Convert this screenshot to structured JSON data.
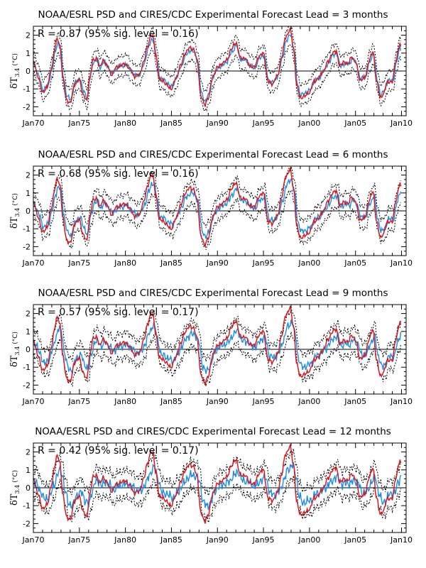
{
  "figure": {
    "ylabel_symbol": "δT",
    "ylabel_subscript": "3.4",
    "ylabel_unit": "(°C)"
  },
  "chart_data": [
    {
      "type": "line",
      "title": "NOAA/ESRL PSD and CIRES/CDC Experimental Forecast Lead = 3 months",
      "annotation": "R = 0.87 (95% sig. level = 0.16)",
      "xlabel": "",
      "ylabel": "δT3.4 (°C)",
      "xlim": [
        1970,
        2010.5
      ],
      "ylim": [
        -2.5,
        2.5
      ],
      "x_ticks": [
        "Jan70",
        "Jan75",
        "Jan80",
        "Jan85",
        "Jan90",
        "Jan95",
        "Jan00",
        "Jan05",
        "Jan10"
      ],
      "y_ticks": [
        -2,
        -1,
        0,
        1,
        2
      ],
      "forecast_lead_months": 3,
      "noise": 0.22,
      "series": [
        {
          "role": "observed",
          "color": "#d71920",
          "style": "solid"
        },
        {
          "role": "forecast",
          "color": "#1e8ce6",
          "style": "solid"
        },
        {
          "role": "spread",
          "color": "#000000",
          "style": "dotted"
        }
      ]
    },
    {
      "type": "line",
      "title": "NOAA/ESRL PSD and CIRES/CDC Experimental Forecast Lead = 6 months",
      "annotation": "R = 0.68 (95% sig. level = 0.16)",
      "xlabel": "",
      "ylabel": "δT3.4 (°C)",
      "xlim": [
        1970,
        2010.5
      ],
      "ylim": [
        -2.5,
        2.5
      ],
      "x_ticks": [
        "Jan70",
        "Jan75",
        "Jan80",
        "Jan85",
        "Jan90",
        "Jan95",
        "Jan00",
        "Jan05",
        "Jan10"
      ],
      "y_ticks": [
        -2,
        -1,
        0,
        1,
        2
      ],
      "forecast_lead_months": 6,
      "noise": 0.3,
      "series": [
        {
          "role": "observed",
          "color": "#d71920",
          "style": "solid"
        },
        {
          "role": "forecast",
          "color": "#1e8ce6",
          "style": "solid"
        },
        {
          "role": "spread",
          "color": "#000000",
          "style": "dotted"
        }
      ]
    },
    {
      "type": "line",
      "title": "NOAA/ESRL PSD and CIRES/CDC Experimental Forecast Lead = 9 months",
      "annotation": "R = 0.57 (95% sig. level = 0.17)",
      "xlabel": "",
      "ylabel": "δT3.4 (°C)",
      "xlim": [
        1970,
        2010.5
      ],
      "ylim": [
        -2.5,
        2.5
      ],
      "x_ticks": [
        "Jan70",
        "Jan75",
        "Jan80",
        "Jan85",
        "Jan90",
        "Jan95",
        "Jan00",
        "Jan05",
        "Jan10"
      ],
      "y_ticks": [
        -2,
        -1,
        0,
        1,
        2
      ],
      "forecast_lead_months": 9,
      "noise": 0.38,
      "series": [
        {
          "role": "observed",
          "color": "#d71920",
          "style": "solid"
        },
        {
          "role": "forecast",
          "color": "#1e8ce6",
          "style": "solid"
        },
        {
          "role": "spread",
          "color": "#000000",
          "style": "dotted"
        }
      ]
    },
    {
      "type": "line",
      "title": "NOAA/ESRL PSD and CIRES/CDC Experimental Forecast Lead = 12 months",
      "annotation": "R = 0.42 (95% sig. level = 0.17)",
      "xlabel": "",
      "ylabel": "δT3.4 (°C)",
      "xlim": [
        1970,
        2010.5
      ],
      "ylim": [
        -2.5,
        2.5
      ],
      "x_ticks": [
        "Jan70",
        "Jan75",
        "Jan80",
        "Jan85",
        "Jan90",
        "Jan95",
        "Jan00",
        "Jan05",
        "Jan10"
      ],
      "y_ticks": [
        -2,
        -1,
        0,
        1,
        2
      ],
      "forecast_lead_months": 12,
      "noise": 0.45,
      "series": [
        {
          "role": "observed",
          "color": "#d71920",
          "style": "solid"
        },
        {
          "role": "forecast",
          "color": "#1e8ce6",
          "style": "solid"
        },
        {
          "role": "spread",
          "color": "#000000",
          "style": "dotted"
        }
      ]
    }
  ],
  "observed_anomaly": {
    "x": [
      1970.0,
      1970.5,
      1971.0,
      1971.5,
      1972.0,
      1972.3,
      1972.6,
      1972.9,
      1973.2,
      1973.6,
      1974.0,
      1974.5,
      1975.0,
      1975.4,
      1975.8,
      1976.1,
      1976.5,
      1976.9,
      1977.2,
      1977.6,
      1978.0,
      1978.5,
      1979.0,
      1979.5,
      1980.0,
      1980.5,
      1981.0,
      1981.5,
      1982.0,
      1982.4,
      1982.8,
      1983.0,
      1983.3,
      1983.7,
      1984.0,
      1984.5,
      1985.0,
      1985.5,
      1986.0,
      1986.5,
      1987.0,
      1987.4,
      1987.8,
      1988.2,
      1988.6,
      1989.0,
      1989.5,
      1990.0,
      1990.5,
      1991.0,
      1991.5,
      1992.0,
      1992.5,
      1993.0,
      1993.5,
      1994.0,
      1994.5,
      1995.0,
      1995.5,
      1996.0,
      1996.5,
      1997.0,
      1997.4,
      1997.9,
      1998.3,
      1998.6,
      1999.0,
      1999.5,
      2000.0,
      2000.5,
      2001.0,
      2001.5,
      2002.0,
      2002.5,
      2002.9,
      2003.3,
      2003.8,
      2004.2,
      2004.6,
      2005.0,
      2005.5,
      2006.0,
      2006.5,
      2006.9,
      2007.3,
      2007.7,
      2008.0,
      2008.5,
      2009.0,
      2009.4,
      2009.8,
      2010.0
    ],
    "y": [
      0.5,
      -0.3,
      -1.2,
      -0.9,
      0.2,
      1.2,
      1.8,
      1.4,
      -0.4,
      -1.6,
      -1.8,
      -0.7,
      -0.5,
      -1.3,
      -1.7,
      -0.4,
      0.6,
      0.7,
      0.2,
      0.6,
      0.3,
      -0.2,
      0.2,
      0.3,
      0.4,
      0.1,
      -0.3,
      -0.2,
      0.5,
      1.4,
      2.0,
      1.9,
      0.9,
      -0.5,
      -0.5,
      -0.8,
      -1.0,
      -0.4,
      0.3,
      1.0,
      1.3,
      1.2,
      0.6,
      -1.4,
      -1.9,
      -1.5,
      -0.3,
      0.2,
      0.4,
      0.6,
      1.2,
      1.6,
      0.7,
      0.7,
      0.3,
      0.2,
      0.8,
      1.0,
      -0.6,
      -0.7,
      -0.3,
      0.8,
      1.9,
      2.3,
      1.2,
      -0.8,
      -1.5,
      -1.4,
      -1.2,
      -0.6,
      -0.4,
      0.0,
      0.5,
      1.0,
      1.1,
      0.3,
      0.5,
      0.4,
      0.8,
      0.5,
      -0.5,
      -0.4,
      0.6,
      1.1,
      -0.6,
      -1.5,
      -1.3,
      -0.6,
      -0.6,
      0.6,
      1.5,
      1.2
    ]
  }
}
